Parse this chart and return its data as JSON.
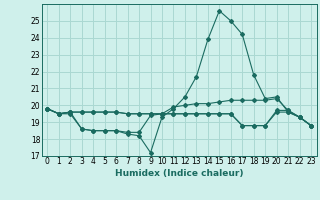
{
  "title": "",
  "xlabel": "Humidex (Indice chaleur)",
  "background_color": "#cff0eb",
  "grid_color": "#aad8d2",
  "line_color": "#1a6b60",
  "xlim": [
    -0.5,
    23.5
  ],
  "ylim": [
    17,
    26
  ],
  "yticks": [
    17,
    18,
    19,
    20,
    21,
    22,
    23,
    24,
    25
  ],
  "xticks": [
    0,
    1,
    2,
    3,
    4,
    5,
    6,
    7,
    8,
    9,
    10,
    11,
    12,
    13,
    14,
    15,
    16,
    17,
    18,
    19,
    20,
    21,
    22,
    23
  ],
  "line1": [
    19.8,
    19.5,
    19.6,
    18.6,
    18.5,
    18.5,
    18.5,
    18.3,
    18.2,
    17.2,
    19.3,
    19.8,
    20.5,
    21.7,
    23.9,
    25.6,
    25.0,
    24.2,
    21.8,
    20.4,
    20.5,
    19.6,
    19.3,
    18.8
  ],
  "line2": [
    19.8,
    19.5,
    19.6,
    19.6,
    19.6,
    19.6,
    19.6,
    19.5,
    19.5,
    19.5,
    19.5,
    19.9,
    20.0,
    20.1,
    20.1,
    20.2,
    20.3,
    20.3,
    20.3,
    20.3,
    20.4,
    19.7,
    19.3,
    18.8
  ],
  "line3": [
    19.8,
    19.5,
    19.6,
    19.6,
    19.6,
    19.6,
    19.6,
    19.5,
    19.5,
    19.5,
    19.5,
    19.5,
    19.5,
    19.5,
    19.5,
    19.5,
    19.5,
    18.8,
    18.8,
    18.8,
    19.7,
    19.7,
    19.3,
    18.8
  ],
  "line4": [
    19.8,
    19.5,
    19.5,
    18.6,
    18.5,
    18.5,
    18.5,
    18.4,
    18.4,
    19.4,
    19.5,
    19.5,
    19.5,
    19.5,
    19.5,
    19.5,
    19.5,
    18.8,
    18.8,
    18.8,
    19.6,
    19.6,
    19.3,
    18.8
  ]
}
